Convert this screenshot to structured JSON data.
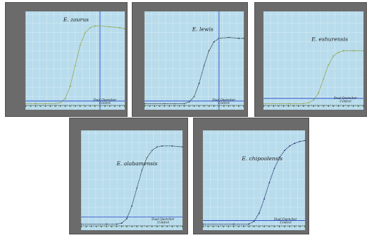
{
  "figure": {
    "background": "#ffffff",
    "panel_bg": "#6b6b6b",
    "plot_bg": "#b8dcec",
    "grid_color": "#ffffff",
    "threshold_color": "#2244cc",
    "baseline_color": "#1a1a1a"
  },
  "chart_data": [
    {
      "type": "line",
      "title": "",
      "xlabel": "",
      "ylabel": "",
      "grid": true,
      "xlim": [
        0,
        40
      ],
      "ylim": [
        0,
        1
      ],
      "threshold": 0.05,
      "cursor_x": 30,
      "curve_color": "#8a9a2a",
      "annotations": [
        {
          "text": "E. zaurus",
          "italic": true
        },
        {
          "text": "Dual Quencher Control",
          "italic": true
        }
      ],
      "series": [
        {
          "name": "E. zaurus",
          "x": [
            0,
            4,
            8,
            12,
            14,
            16,
            18,
            20,
            22,
            24,
            26,
            28,
            30,
            34,
            38,
            40
          ],
          "values": [
            0.02,
            0.02,
            0.02,
            0.02,
            0.03,
            0.08,
            0.22,
            0.45,
            0.68,
            0.82,
            0.88,
            0.9,
            0.9,
            0.89,
            0.88,
            0.87
          ]
        },
        {
          "name": "",
          "x": [
            0,
            10,
            20,
            30,
            40
          ],
          "values": [
            0.0,
            0.0,
            0.0,
            0.0,
            0.0
          ]
        }
      ]
    },
    {
      "type": "line",
      "title": "",
      "xlabel": "",
      "ylabel": "",
      "grid": true,
      "xlim": [
        0,
        40
      ],
      "ylim": [
        0,
        1
      ],
      "threshold": 0.05,
      "cursor_x": 30,
      "curve_color": "#2a3a3a",
      "annotations": [
        {
          "text": "E. lewis",
          "italic": true
        },
        {
          "text": "Dual Quencher Control",
          "italic": true
        }
      ],
      "series": [
        {
          "name": "E. lewis",
          "x": [
            0,
            8,
            12,
            16,
            18,
            20,
            22,
            24,
            26,
            28,
            30,
            34,
            38,
            40
          ],
          "values": [
            0.02,
            0.02,
            0.02,
            0.02,
            0.04,
            0.1,
            0.25,
            0.45,
            0.62,
            0.72,
            0.76,
            0.77,
            0.76,
            0.76
          ]
        },
        {
          "name": "",
          "x": [
            0,
            10,
            20,
            30,
            40
          ],
          "values": [
            0.0,
            0.0,
            0.0,
            0.0,
            0.0
          ]
        }
      ]
    },
    {
      "type": "line",
      "title": "",
      "xlabel": "",
      "ylabel": "",
      "grid": true,
      "xlim": [
        0,
        40
      ],
      "ylim": [
        0,
        1
      ],
      "threshold": 0.08,
      "cursor_x": null,
      "curve_color": "#8a9a2a",
      "annotations": [
        {
          "text": "E. eshurensis",
          "italic": true
        },
        {
          "text": "Dual Quencher Control",
          "italic": true
        }
      ],
      "series": [
        {
          "name": "E. eshurensis",
          "x": [
            0,
            10,
            16,
            18,
            20,
            22,
            24,
            26,
            28,
            30,
            32,
            36,
            40
          ],
          "values": [
            0.02,
            0.02,
            0.02,
            0.03,
            0.06,
            0.14,
            0.3,
            0.46,
            0.56,
            0.6,
            0.62,
            0.62,
            0.62
          ]
        },
        {
          "name": "",
          "x": [
            0,
            10,
            20,
            30,
            40
          ],
          "values": [
            0.0,
            0.0,
            0.0,
            0.0,
            0.0
          ]
        }
      ]
    },
    {
      "type": "line",
      "title": "",
      "xlabel": "",
      "ylabel": "",
      "grid": true,
      "xlim": [
        0,
        40
      ],
      "ylim": [
        0,
        1
      ],
      "threshold": 0.1,
      "cursor_x": null,
      "curve_color": "#2a3a4a",
      "annotations": [
        {
          "text": "E. alabamensis",
          "italic": true
        },
        {
          "text": "Dual Quencher Control",
          "italic": true
        }
      ],
      "series": [
        {
          "name": "E. alabamensis",
          "x": [
            0,
            10,
            14,
            16,
            18,
            20,
            22,
            24,
            26,
            28,
            30,
            32,
            36,
            40
          ],
          "values": [
            0.02,
            0.02,
            0.02,
            0.03,
            0.08,
            0.22,
            0.42,
            0.62,
            0.76,
            0.84,
            0.88,
            0.89,
            0.89,
            0.88
          ]
        },
        {
          "name": "",
          "x": [
            0,
            10,
            20,
            30,
            40
          ],
          "values": [
            0.0,
            0.0,
            0.0,
            0.0,
            0.0
          ]
        }
      ]
    },
    {
      "type": "line",
      "title": "",
      "xlabel": "",
      "ylabel": "",
      "grid": true,
      "xlim": [
        0,
        40
      ],
      "ylim": [
        0,
        1
      ],
      "threshold": 0.06,
      "cursor_x": null,
      "curve_color": "#1a2a6a",
      "annotations": [
        {
          "text": "E. chipoolensis",
          "italic": true
        },
        {
          "text": "Dual Quencher Control",
          "italic": true
        }
      ],
      "series": [
        {
          "name": "E. chipoolensis",
          "x": [
            0,
            12,
            18,
            20,
            22,
            24,
            26,
            28,
            30,
            32,
            34,
            36,
            38,
            40
          ],
          "values": [
            0.02,
            0.02,
            0.02,
            0.05,
            0.14,
            0.3,
            0.48,
            0.64,
            0.76,
            0.84,
            0.89,
            0.92,
            0.94,
            0.95
          ]
        },
        {
          "name": "",
          "x": [
            0,
            10,
            20,
            30,
            40
          ],
          "values": [
            0.0,
            0.0,
            0.0,
            0.0,
            0.0
          ]
        }
      ]
    }
  ]
}
